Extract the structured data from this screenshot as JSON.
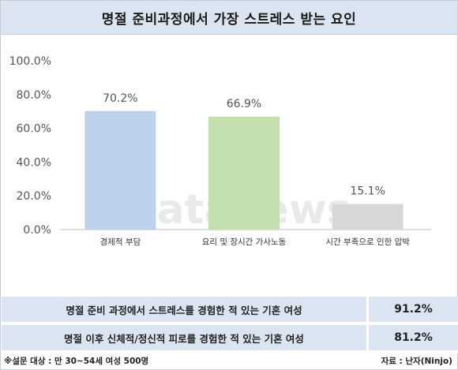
{
  "title": "명절 준비과정에서 가장 스트레스 받는 요인",
  "watermark": {
    "part1": "data",
    "part2": "news"
  },
  "chart_data": {
    "type": "bar",
    "categories": [
      "경제적 부담",
      "요리 및 장시간 가사노동",
      "시간 부족으로 인한 압박"
    ],
    "values": [
      70.2,
      66.9,
      15.1
    ],
    "value_labels": [
      "70.2%",
      "66.9%",
      "15.1%"
    ],
    "colors": [
      "#bcd2ea",
      "#c4dfae",
      "#d7d7d7"
    ],
    "ylim": [
      0,
      100
    ],
    "yticks": [
      0,
      20,
      40,
      60,
      80,
      100
    ],
    "ytick_labels": [
      "0.0%",
      "20.0%",
      "40.0%",
      "60.0%",
      "80.0%",
      "100.0%"
    ],
    "grid": false,
    "xlabel": "",
    "ylabel": ""
  },
  "stats": [
    {
      "label": "명절 준비 과정에서 스트레스를 경험한 적 있는 기혼 여성",
      "value": "91.2%"
    },
    {
      "label": "명절 이후 신체적/정신적 피로를 경험한 적 있는 기혼 여성",
      "value": "81.2%"
    }
  ],
  "footer": {
    "note": "※설문 대상 : 만 30~54세 여성 500명",
    "source": "자료 : 난자(Ninjo)"
  }
}
